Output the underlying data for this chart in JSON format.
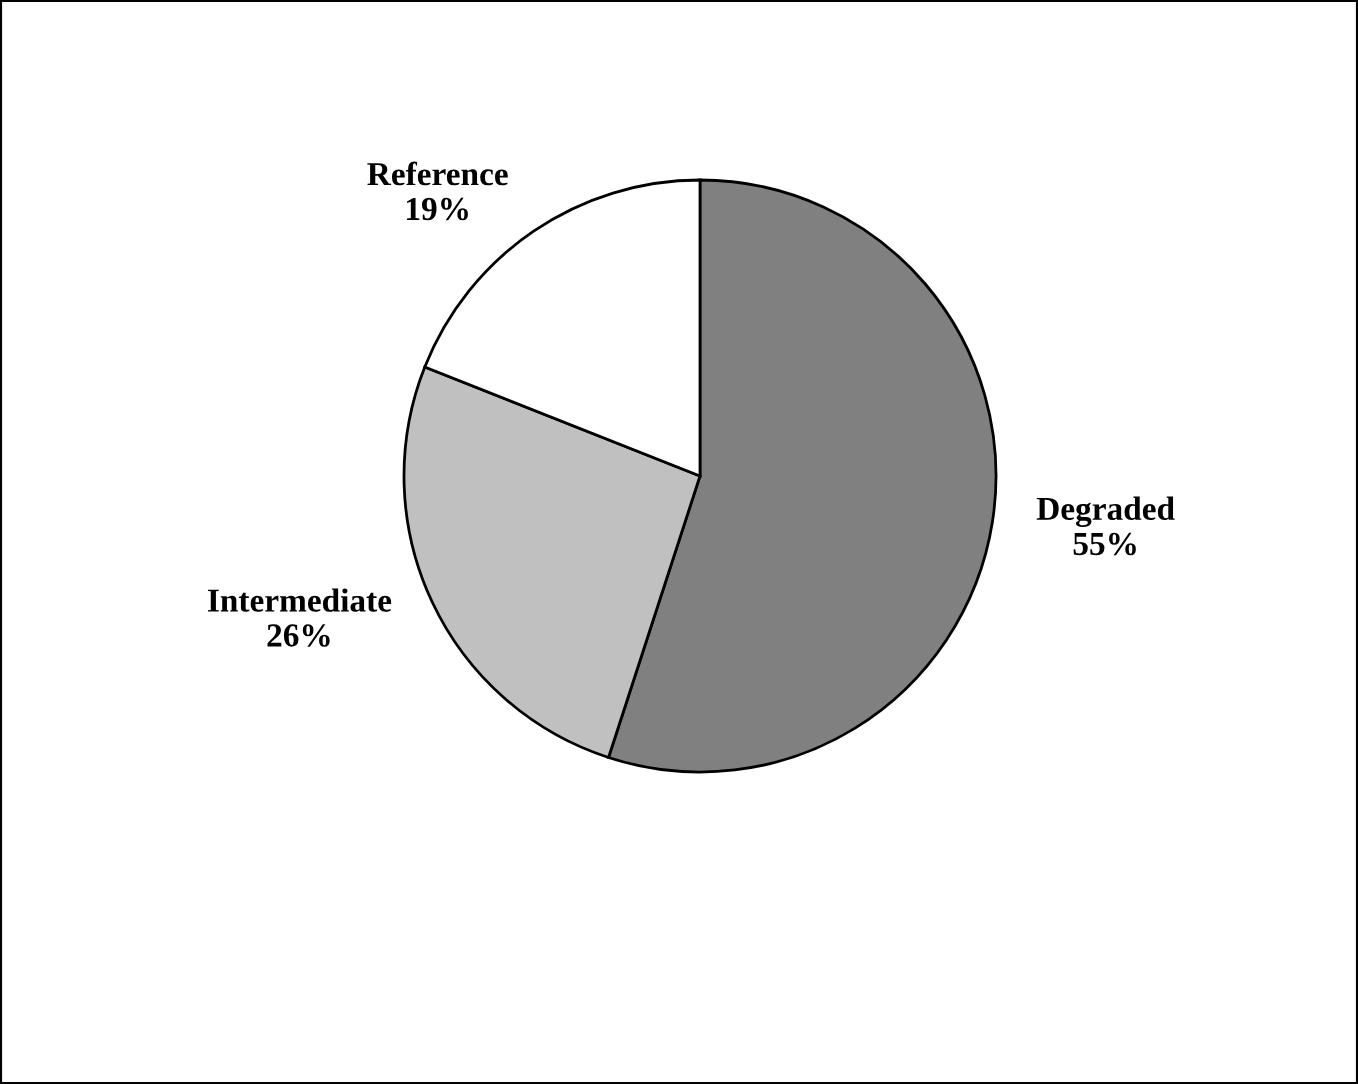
{
  "chart_data": {
    "type": "pie",
    "categories": [
      "Degraded",
      "Intermediate",
      "Reference"
    ],
    "values": [
      55,
      26,
      19
    ],
    "colors": [
      "#808080",
      "#c0c0c0",
      "#ffffff"
    ],
    "value_labels": [
      "55%",
      "26%",
      "19%"
    ]
  }
}
